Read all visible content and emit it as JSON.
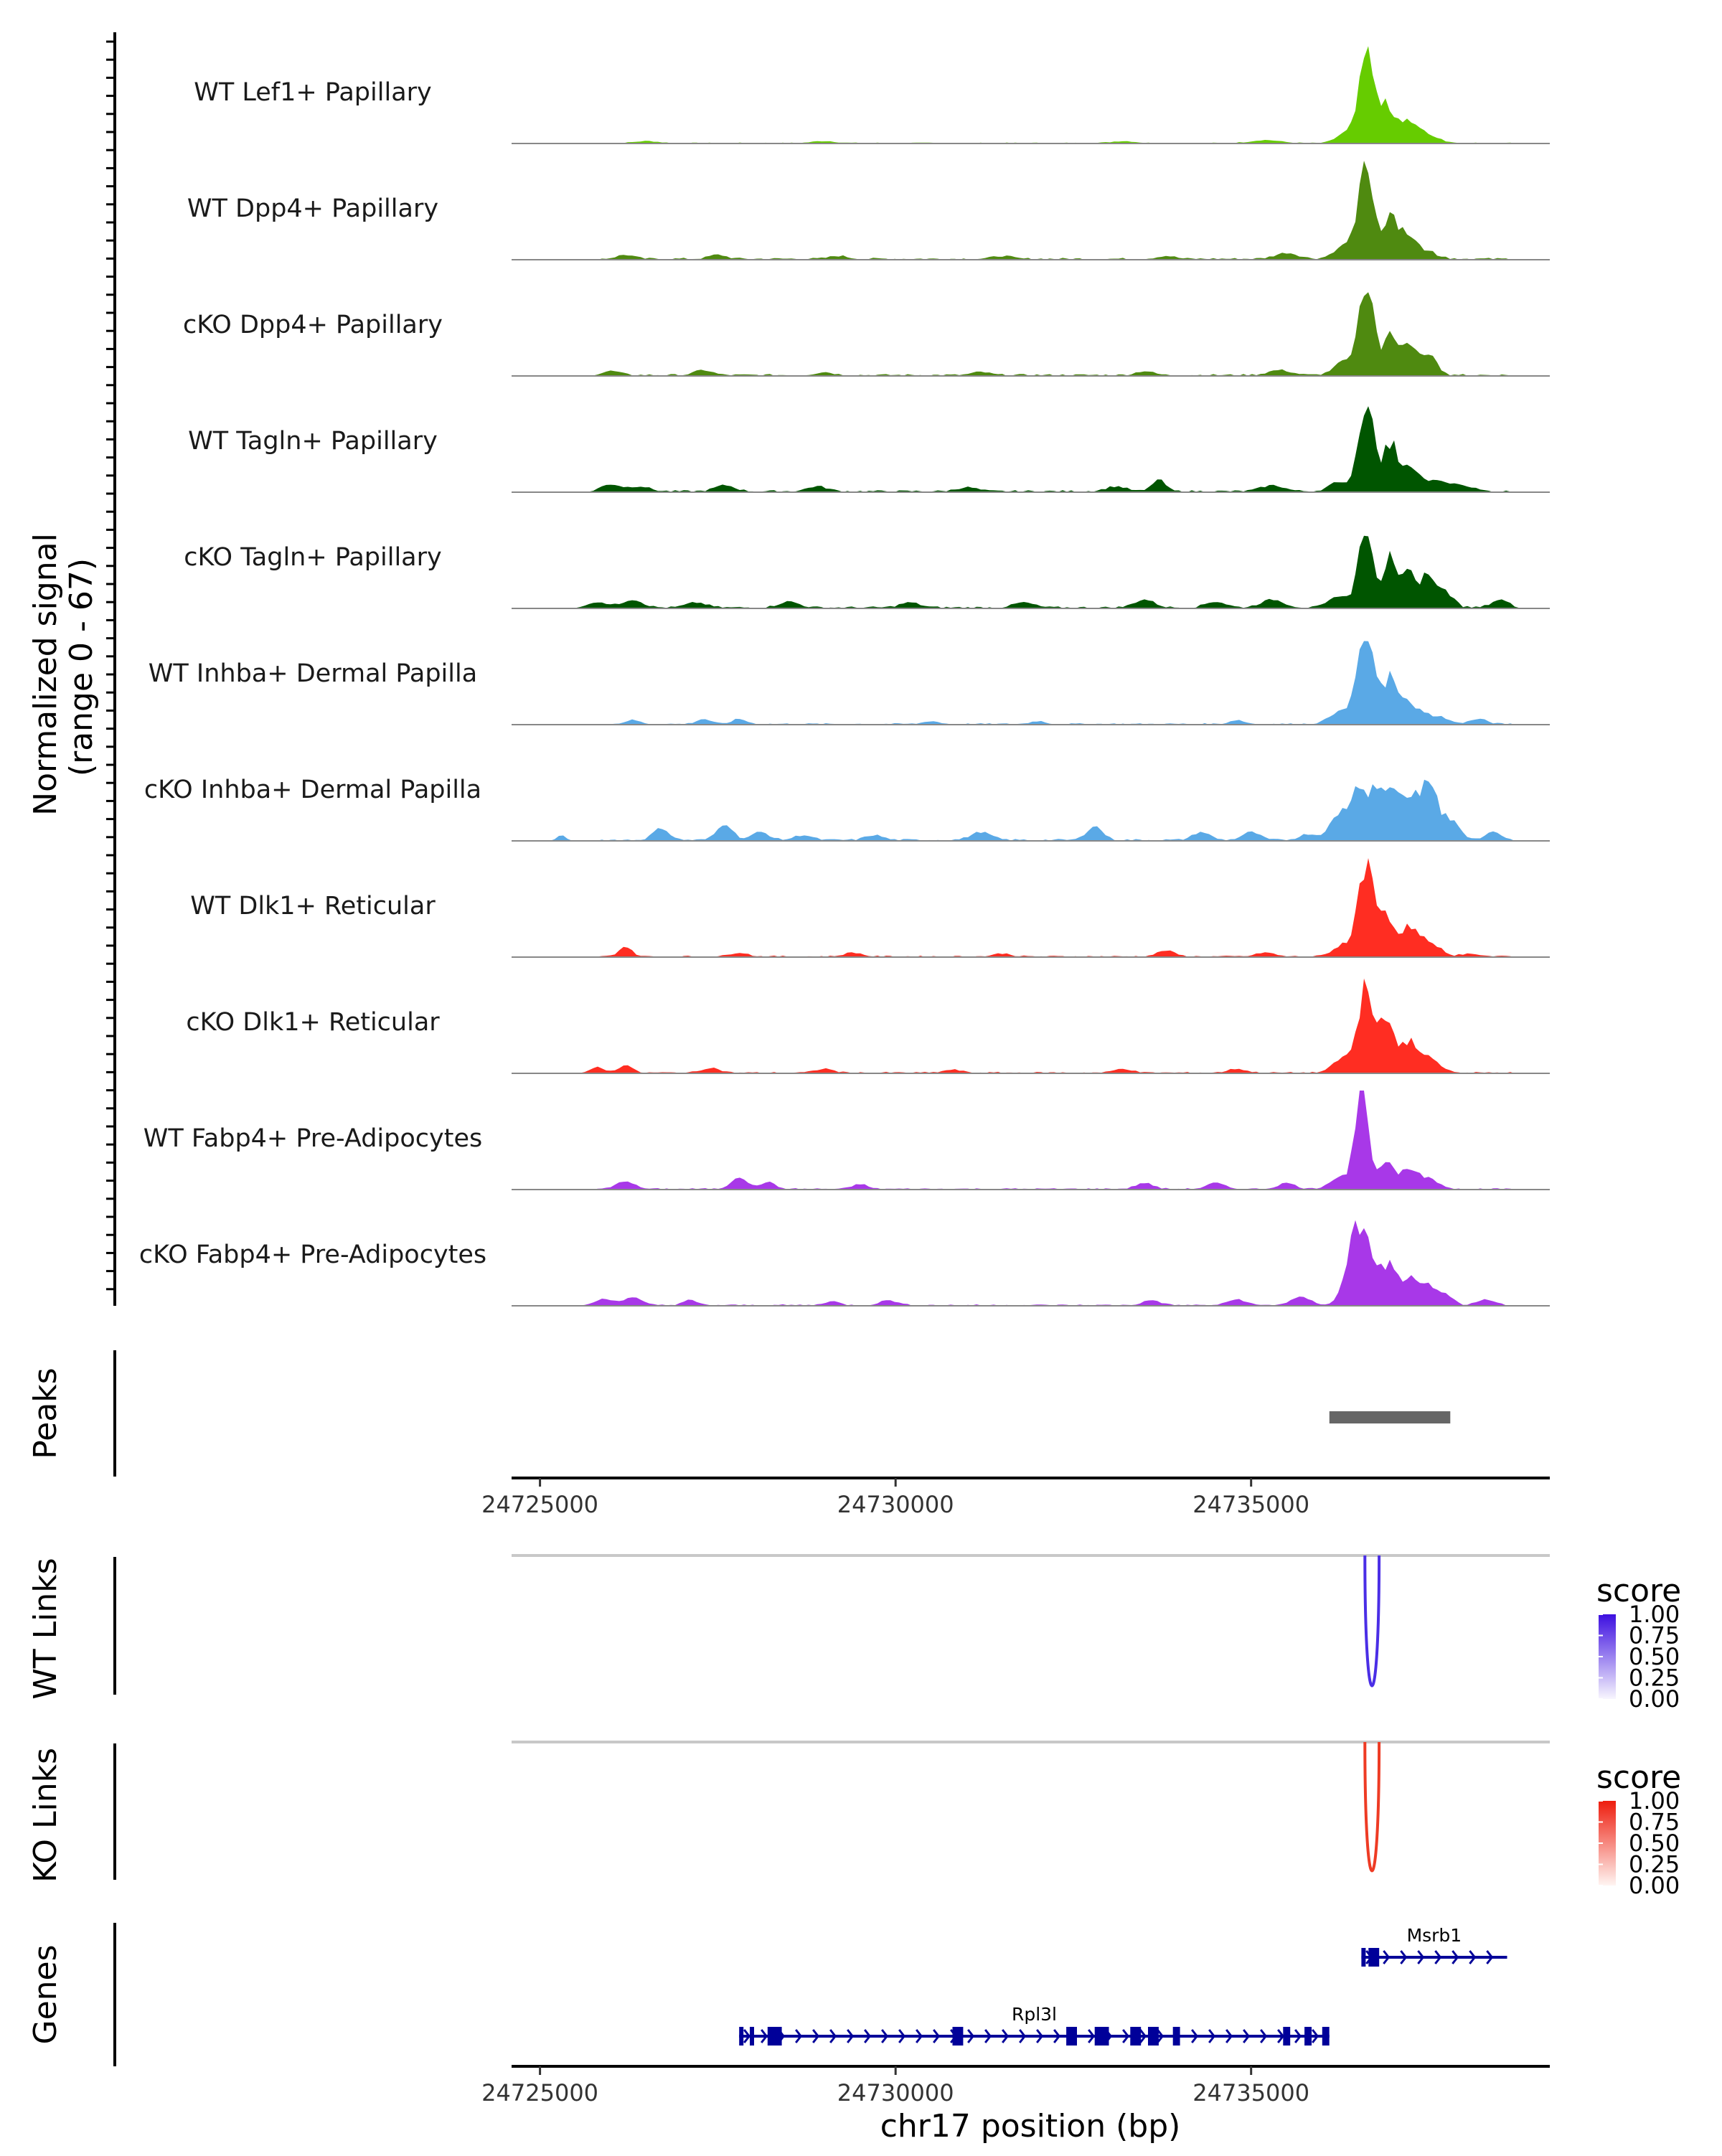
{
  "chart_data": {
    "type": "area",
    "region": {
      "chromosome": "chr17",
      "start": 24724600,
      "end": 24739200
    },
    "xlabel": "chr17 position (bp)",
    "x_ticks": [
      24725000,
      24730000,
      24735000
    ],
    "x_tick_labels": [
      "24725000",
      "24730000",
      "24735000"
    ],
    "coverage": {
      "ylabel_line1": "Normalized signal",
      "ylabel_line2": "(range 0 - 67)",
      "ylim": [
        0,
        67
      ],
      "tracks": [
        {
          "name": "WT Lef1+ Papillary",
          "color": "#66cc00",
          "peaks": [
            [
              24736620,
              0.92,
              110
            ],
            [
              24736900,
              0.3,
              90
            ],
            [
              24737150,
              0.22,
              150
            ],
            [
              24737450,
              0.08,
              180
            ],
            [
              24736300,
              0.08,
              120
            ]
          ],
          "minors": [
            [
              24726500,
              0.02,
              160
            ],
            [
              24729000,
              0.02,
              160
            ],
            [
              24733200,
              0.02,
              160
            ],
            [
              24735200,
              0.03,
              200
            ]
          ],
          "base_noise": 0.01
        },
        {
          "name": "WT Dpp4+ Papillary",
          "color": "#4f8a10",
          "peaks": [
            [
              24736620,
              0.92,
              110
            ],
            [
              24736950,
              0.4,
              80
            ],
            [
              24737150,
              0.26,
              130
            ],
            [
              24737450,
              0.08,
              160
            ],
            [
              24736300,
              0.12,
              140
            ]
          ],
          "minors": [
            [
              24726200,
              0.04,
              120
            ],
            [
              24727500,
              0.04,
              120
            ],
            [
              24729200,
              0.03,
              120
            ],
            [
              24731500,
              0.03,
              120
            ],
            [
              24733800,
              0.03,
              120
            ],
            [
              24735500,
              0.06,
              160
            ]
          ],
          "base_noise": 0.02
        },
        {
          "name": "cKO Dpp4+ Papillary",
          "color": "#4f8a10",
          "peaks": [
            [
              24736620,
              0.92,
              110
            ],
            [
              24736950,
              0.38,
              80
            ],
            [
              24737200,
              0.3,
              140
            ],
            [
              24737500,
              0.18,
              110
            ],
            [
              24736300,
              0.12,
              140
            ]
          ],
          "minors": [
            [
              24726000,
              0.04,
              120
            ],
            [
              24727300,
              0.05,
              120
            ],
            [
              24729000,
              0.03,
              120
            ],
            [
              24731200,
              0.03,
              120
            ],
            [
              24733500,
              0.04,
              120
            ],
            [
              24735400,
              0.05,
              160
            ]
          ],
          "base_noise": 0.02
        },
        {
          "name": "WT Tagln+ Papillary",
          "color": "#005500",
          "peaks": [
            [
              24736620,
              0.95,
              100
            ],
            [
              24736950,
              0.45,
              90
            ],
            [
              24737200,
              0.22,
              140
            ],
            [
              24737600,
              0.1,
              200
            ],
            [
              24736250,
              0.1,
              140
            ]
          ],
          "minors": [
            [
              24726000,
              0.07,
              140
            ],
            [
              24726400,
              0.05,
              140
            ],
            [
              24727600,
              0.06,
              140
            ],
            [
              24728900,
              0.05,
              140
            ],
            [
              24731000,
              0.04,
              140
            ],
            [
              24733100,
              0.05,
              140
            ],
            [
              24733700,
              0.12,
              90
            ],
            [
              24735300,
              0.06,
              160
            ],
            [
              24738000,
              0.05,
              140
            ]
          ],
          "base_noise": 0.02
        },
        {
          "name": "cKO Tagln+ Papillary",
          "color": "#005500",
          "peaks": [
            [
              24736620,
              0.85,
              100
            ],
            [
              24736950,
              0.5,
              90
            ],
            [
              24737200,
              0.4,
              90
            ],
            [
              24737450,
              0.3,
              90
            ],
            [
              24737700,
              0.2,
              120
            ],
            [
              24736250,
              0.12,
              140
            ]
          ],
          "minors": [
            [
              24725800,
              0.06,
              140
            ],
            [
              24726300,
              0.08,
              140
            ],
            [
              24727200,
              0.05,
              140
            ],
            [
              24728500,
              0.06,
              140
            ],
            [
              24730200,
              0.05,
              140
            ],
            [
              24731800,
              0.05,
              140
            ],
            [
              24733500,
              0.08,
              140
            ],
            [
              24734500,
              0.06,
              140
            ],
            [
              24735300,
              0.08,
              160
            ],
            [
              24738500,
              0.08,
              120
            ]
          ],
          "base_noise": 0.02
        },
        {
          "name": "WT Inhba+ Dermal Papilla",
          "color": "#5aa9e6",
          "peaks": [
            [
              24736620,
              0.88,
              120
            ],
            [
              24736950,
              0.4,
              90
            ],
            [
              24737200,
              0.22,
              150
            ],
            [
              24737600,
              0.08,
              160
            ],
            [
              24736250,
              0.12,
              150
            ]
          ],
          "minors": [
            [
              24726300,
              0.04,
              100
            ],
            [
              24727300,
              0.05,
              100
            ],
            [
              24727800,
              0.05,
              100
            ],
            [
              24730500,
              0.03,
              100
            ],
            [
              24732000,
              0.03,
              100
            ],
            [
              24734800,
              0.04,
              100
            ],
            [
              24738200,
              0.05,
              120
            ]
          ],
          "base_noise": 0.015
        },
        {
          "name": "cKO Inhba+ Dermal Papilla",
          "color": "#5aa9e6",
          "peaks": [
            [
              24736500,
              0.5,
              140
            ],
            [
              24736850,
              0.5,
              150
            ],
            [
              24737200,
              0.45,
              140
            ],
            [
              24737500,
              0.6,
              110
            ],
            [
              24737800,
              0.2,
              130
            ],
            [
              24736200,
              0.2,
              120
            ]
          ],
          "minors": [
            [
              24725300,
              0.06,
              60
            ],
            [
              24726700,
              0.12,
              110
            ],
            [
              24727600,
              0.16,
              110
            ],
            [
              24728100,
              0.08,
              120
            ],
            [
              24728700,
              0.05,
              120
            ],
            [
              24729700,
              0.05,
              120
            ],
            [
              24731200,
              0.08,
              140
            ],
            [
              24732800,
              0.14,
              110
            ],
            [
              24734300,
              0.08,
              120
            ],
            [
              24735000,
              0.08,
              120
            ],
            [
              24735800,
              0.06,
              120
            ],
            [
              24738400,
              0.08,
              100
            ]
          ],
          "base_noise": 0.02
        },
        {
          "name": "WT Dlk1+ Reticular",
          "color": "#ff2d22",
          "peaks": [
            [
              24736620,
              0.92,
              110
            ],
            [
              24736900,
              0.4,
              90
            ],
            [
              24737200,
              0.28,
              140
            ],
            [
              24737500,
              0.12,
              160
            ],
            [
              24736300,
              0.12,
              140
            ]
          ],
          "minors": [
            [
              24726200,
              0.1,
              90
            ],
            [
              24727800,
              0.04,
              120
            ],
            [
              24729400,
              0.04,
              120
            ],
            [
              24731500,
              0.03,
              120
            ],
            [
              24733800,
              0.06,
              120
            ],
            [
              24735200,
              0.04,
              120
            ],
            [
              24738100,
              0.03,
              120
            ]
          ],
          "base_noise": 0.015
        },
        {
          "name": "cKO Dlk1+ Reticular",
          "color": "#ff2d22",
          "peaks": [
            [
              24736620,
              0.85,
              110
            ],
            [
              24736900,
              0.45,
              100
            ],
            [
              24737200,
              0.3,
              140
            ],
            [
              24737500,
              0.12,
              160
            ],
            [
              24736300,
              0.15,
              140
            ]
          ],
          "minors": [
            [
              24725800,
              0.06,
              100
            ],
            [
              24726200,
              0.08,
              90
            ],
            [
              24727400,
              0.05,
              120
            ],
            [
              24729000,
              0.04,
              120
            ],
            [
              24730800,
              0.03,
              120
            ],
            [
              24733200,
              0.04,
              120
            ],
            [
              24734800,
              0.04,
              120
            ]
          ],
          "base_noise": 0.015
        },
        {
          "name": "WT Fabp4+ Pre-Adipocytes",
          "color": "#a838e8",
          "peaks": [
            [
              24736560,
              0.98,
              95
            ],
            [
              24736900,
              0.3,
              90
            ],
            [
              24737200,
              0.2,
              120
            ],
            [
              24737500,
              0.1,
              140
            ],
            [
              24736250,
              0.12,
              140
            ]
          ],
          "minors": [
            [
              24726200,
              0.08,
              120
            ],
            [
              24727800,
              0.12,
              110
            ],
            [
              24728200,
              0.07,
              100
            ],
            [
              24729500,
              0.05,
              100
            ],
            [
              24733500,
              0.06,
              120
            ],
            [
              24734500,
              0.06,
              120
            ],
            [
              24735500,
              0.06,
              120
            ]
          ],
          "base_noise": 0.015
        },
        {
          "name": "cKO Fabp4+ Pre-Adipocytes",
          "color": "#a838e8",
          "peaks": [
            [
              24736600,
              0.55,
              180
            ],
            [
              24736450,
              0.35,
              120
            ],
            [
              24736950,
              0.3,
              100
            ],
            [
              24737200,
              0.25,
              100
            ],
            [
              24737450,
              0.18,
              110
            ],
            [
              24737700,
              0.12,
              120
            ]
          ],
          "minors": [
            [
              24725900,
              0.06,
              140
            ],
            [
              24726300,
              0.08,
              120
            ],
            [
              24727100,
              0.05,
              100
            ],
            [
              24729100,
              0.04,
              100
            ],
            [
              24729900,
              0.05,
              120
            ],
            [
              24733600,
              0.05,
              120
            ],
            [
              24734800,
              0.06,
              120
            ],
            [
              24735700,
              0.08,
              140
            ],
            [
              24738300,
              0.06,
              120
            ]
          ],
          "base_noise": 0.015
        }
      ]
    },
    "peaks_track": {
      "ylabel": "Peaks",
      "color": "#666666",
      "ranges": [
        [
          24736100,
          24737800
        ]
      ]
    },
    "links_tracks": [
      {
        "ylabel": "WT Links",
        "color": "#4a2ee6",
        "legend_title": "score",
        "legend_ticks": [
          "1.00",
          "0.75",
          "0.50",
          "0.25",
          "0.00"
        ],
        "legend_low": "#f8f6fe",
        "legend_high": "#3d0fe0",
        "links": [
          {
            "start": 24736600,
            "end": 24736800,
            "score": 1.0
          }
        ]
      },
      {
        "ylabel": "KO Links",
        "color": "#ee3b24",
        "legend_title": "score",
        "legend_ticks": [
          "1.00",
          "0.75",
          "0.50",
          "0.25",
          "0.00"
        ],
        "legend_low": "#fff5f2",
        "legend_high": "#ee1d0e",
        "links": [
          {
            "start": 24736600,
            "end": 24736800,
            "score": 1.0
          }
        ]
      }
    ],
    "genes_track": {
      "ylabel": "Genes",
      "color": "#000099",
      "genes": [
        {
          "name": "Msrb1",
          "start": 24736550,
          "end": 24738600,
          "strand": "+",
          "row": 0,
          "exons": [
            [
              24736550,
              24736600
            ],
            [
              24736650,
              24736800
            ]
          ]
        },
        {
          "name": "Rpl3l",
          "start": 24727800,
          "end": 24736100,
          "strand": "+",
          "row": 1,
          "exons": [
            [
              24727800,
              24727850
            ],
            [
              24727950,
              24728000
            ],
            [
              24728200,
              24728400
            ],
            [
              24730800,
              24730950
            ],
            [
              24732400,
              24732550
            ],
            [
              24732800,
              24733000
            ],
            [
              24733300,
              24733450
            ],
            [
              24733550,
              24733700
            ],
            [
              24733900,
              24734000
            ],
            [
              24735450,
              24735550
            ],
            [
              24735750,
              24735850
            ],
            [
              24736000,
              24736100
            ]
          ]
        }
      ]
    }
  }
}
